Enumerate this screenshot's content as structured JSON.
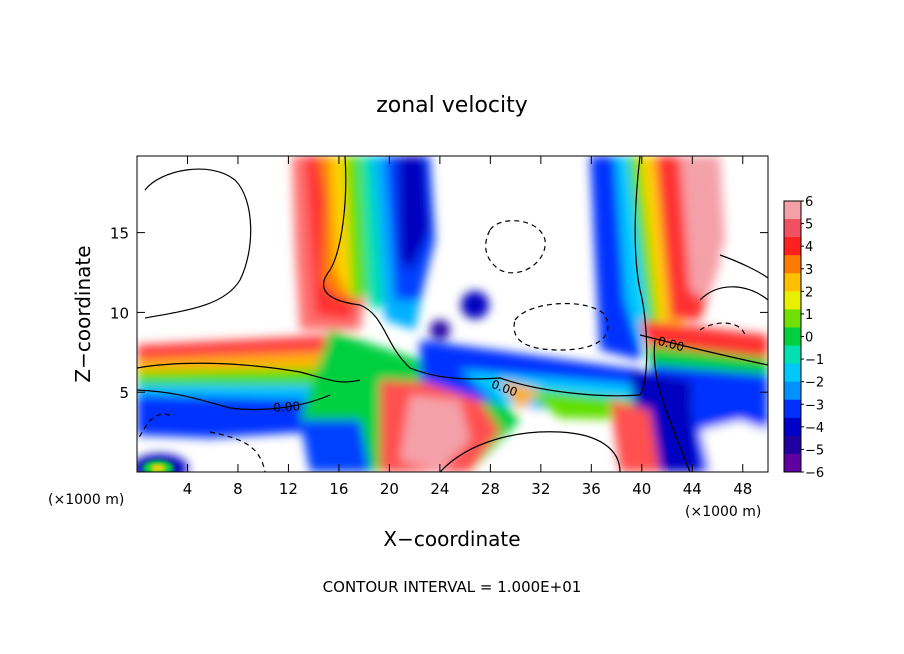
{
  "chart_data": {
    "type": "heatmap",
    "title": "zonal velocity",
    "xlabel": "X−coordinate",
    "ylabel": "Z−coordinate",
    "x_unit_left": "(×1000 m)",
    "x_unit_right": "(×1000 m)",
    "footer": "CONTOUR INTERVAL = 1.000E+01",
    "xlim": [
      0,
      50
    ],
    "ylim": [
      0,
      19.8
    ],
    "x_ticks": [
      4,
      8,
      12,
      16,
      20,
      24,
      28,
      32,
      36,
      40,
      44,
      48
    ],
    "x_tick_labels": [
      "4",
      "8",
      "12",
      "16",
      "20",
      "24",
      "28",
      "32",
      "36",
      "40",
      "44",
      "48"
    ],
    "y_ticks": [
      5,
      10,
      15
    ],
    "y_tick_labels": [
      "5",
      "10",
      "15"
    ],
    "colorbar": {
      "min": -6,
      "max": 6,
      "tick_values": [
        6,
        5,
        4,
        3,
        2,
        1,
        0,
        -1,
        -2,
        -3,
        -4,
        -5,
        -6
      ],
      "tick_labels": [
        "6",
        "5",
        "4",
        "3",
        "2",
        "1",
        "0",
        "−1",
        "−2",
        "−3",
        "−4",
        "−5",
        "−6"
      ],
      "colors": [
        "#f4a0a8",
        "#f05060",
        "#ff2020",
        "#ff7a00",
        "#ffc000",
        "#e8f000",
        "#70e000",
        "#00d040",
        "#00e0b0",
        "#00c8ff",
        "#0090ff",
        "#0030ff",
        "#0000c8",
        "#2000a0",
        "#6000a0"
      ]
    },
    "contour_labels": [
      "0.00",
      "0.00",
      "0.00"
    ]
  }
}
